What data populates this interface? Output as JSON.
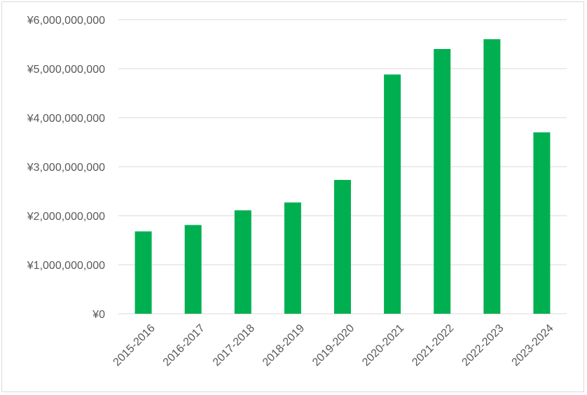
{
  "chart_data": {
    "type": "bar",
    "title": "",
    "xlabel": "",
    "ylabel": "",
    "categories": [
      "2015-2016",
      "2016-2017",
      "2017-2018",
      "2018-2019",
      "2019-2020",
      "2020-2021",
      "2021-2022",
      "2022-2023",
      "2023-2024"
    ],
    "values": [
      1680000000,
      1810000000,
      2110000000,
      2270000000,
      2730000000,
      4880000000,
      5400000000,
      5600000000,
      3700000000
    ],
    "ylim": [
      0,
      6000000000
    ],
    "yticks": [
      0,
      1000000000,
      2000000000,
      3000000000,
      4000000000,
      5000000000,
      6000000000
    ],
    "ytick_labels": [
      "¥0",
      "¥1,000,000,000",
      "¥2,000,000,000",
      "¥3,000,000,000",
      "¥4,000,000,000",
      "¥5,000,000,000",
      "¥6,000,000,000"
    ],
    "grid": true,
    "legend": "none",
    "bar_color": "#00b050"
  }
}
